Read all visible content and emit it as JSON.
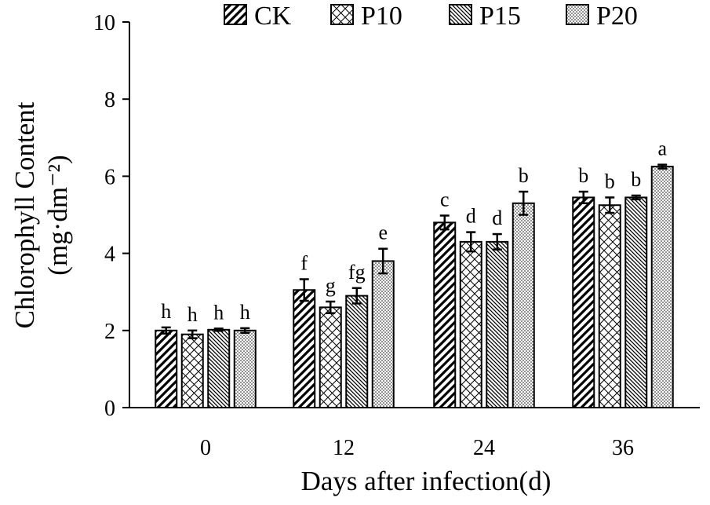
{
  "chart_data": {
    "type": "bar",
    "categories": [
      "0",
      "12",
      "24",
      "36"
    ],
    "series": [
      {
        "name": "CK",
        "pattern": "hatch-wide",
        "values": [
          2.0,
          3.05,
          4.8,
          5.45
        ],
        "errors": [
          0.08,
          0.28,
          0.18,
          0.15
        ],
        "labels": [
          "h",
          "f",
          "c",
          "b"
        ]
      },
      {
        "name": "P10",
        "pattern": "crosshatch",
        "values": [
          1.9,
          2.6,
          4.3,
          5.25
        ],
        "errors": [
          0.1,
          0.15,
          0.25,
          0.2
        ],
        "labels": [
          "h",
          "g",
          "d",
          "b"
        ]
      },
      {
        "name": "P15",
        "pattern": "hatch-dense",
        "values": [
          2.02,
          2.9,
          4.3,
          5.45
        ],
        "errors": [
          0.03,
          0.2,
          0.2,
          0.05
        ],
        "labels": [
          "h",
          "fg",
          "d",
          "b"
        ]
      },
      {
        "name": "P20",
        "pattern": "dots",
        "values": [
          2.0,
          3.8,
          5.3,
          6.25
        ],
        "errors": [
          0.06,
          0.32,
          0.3,
          0.05
        ],
        "labels": [
          "h",
          "e",
          "b",
          "a"
        ]
      }
    ],
    "xlabel": "Days after infection(d)",
    "ylabel": "Chlorophyll Content",
    "yunit": "(mg·dm⁻²)",
    "ylim": [
      0,
      10
    ],
    "yticks": [
      "0",
      "2",
      "4",
      "6",
      "8",
      "10"
    ],
    "grid": false,
    "legend_position": "top"
  }
}
